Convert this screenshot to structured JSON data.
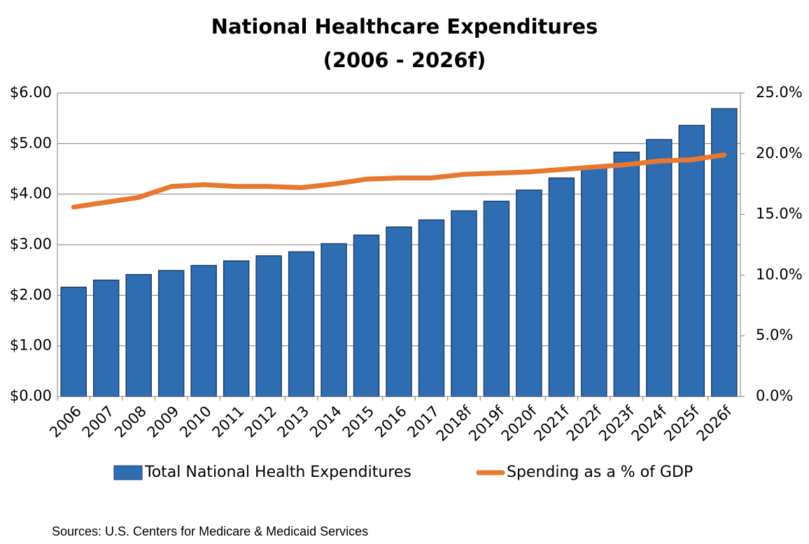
{
  "chart_data": {
    "type": "bar_line",
    "title": "National Healthcare Expenditures",
    "subtitle": "(2006 - 2026f)",
    "categories": [
      "2006",
      "2007",
      "2008",
      "2009",
      "2010",
      "2011",
      "2012",
      "2013",
      "2014",
      "2015",
      "2016",
      "2017",
      "2018f",
      "2019f",
      "2020f",
      "2021f",
      "2022f",
      "2023f",
      "2024f",
      "2025f",
      "2026f"
    ],
    "series": [
      {
        "name": "Total National Health Expenditures",
        "color": "#2f6db3",
        "type": "bar",
        "values": [
          2.16,
          2.3,
          2.41,
          2.49,
          2.59,
          2.68,
          2.78,
          2.86,
          3.02,
          3.19,
          3.35,
          3.49,
          3.67,
          3.86,
          4.08,
          4.32,
          4.52,
          4.83,
          5.08,
          5.36,
          5.69
        ]
      },
      {
        "name": "Spending as a % of GDP",
        "color": "#e8782f",
        "type": "line",
        "axis": "y2",
        "values": [
          15.6,
          16.0,
          16.4,
          17.3,
          17.45,
          17.3,
          17.3,
          17.2,
          17.5,
          17.9,
          18.0,
          18.0,
          18.3,
          18.4,
          18.5,
          18.7,
          18.9,
          19.1,
          19.4,
          19.5,
          19.9
        ]
      }
    ],
    "ylim": [
      0,
      6
    ],
    "yticks": [
      {
        "value": 0,
        "label": "$0.00"
      },
      {
        "value": 1,
        "label": "$1.00"
      },
      {
        "value": 2,
        "label": "$2.00"
      },
      {
        "value": 3,
        "label": "$3.00"
      },
      {
        "value": 4,
        "label": "$4.00"
      },
      {
        "value": 5,
        "label": "$5.00"
      },
      {
        "value": 6,
        "label": "$6.00"
      }
    ],
    "y2lim": [
      0,
      25
    ],
    "y2ticks": [
      {
        "value": 0,
        "label": "0.0%"
      },
      {
        "value": 5,
        "label": "5.0%"
      },
      {
        "value": 10,
        "label": "10.0%"
      },
      {
        "value": 15,
        "label": "15.0%"
      },
      {
        "value": 20,
        "label": "20.0%"
      },
      {
        "value": 25,
        "label": "25.0%"
      }
    ],
    "grid": true,
    "legend": "bottom",
    "source": "Sources: U.S. Centers for Medicare & Medicaid Services"
  }
}
